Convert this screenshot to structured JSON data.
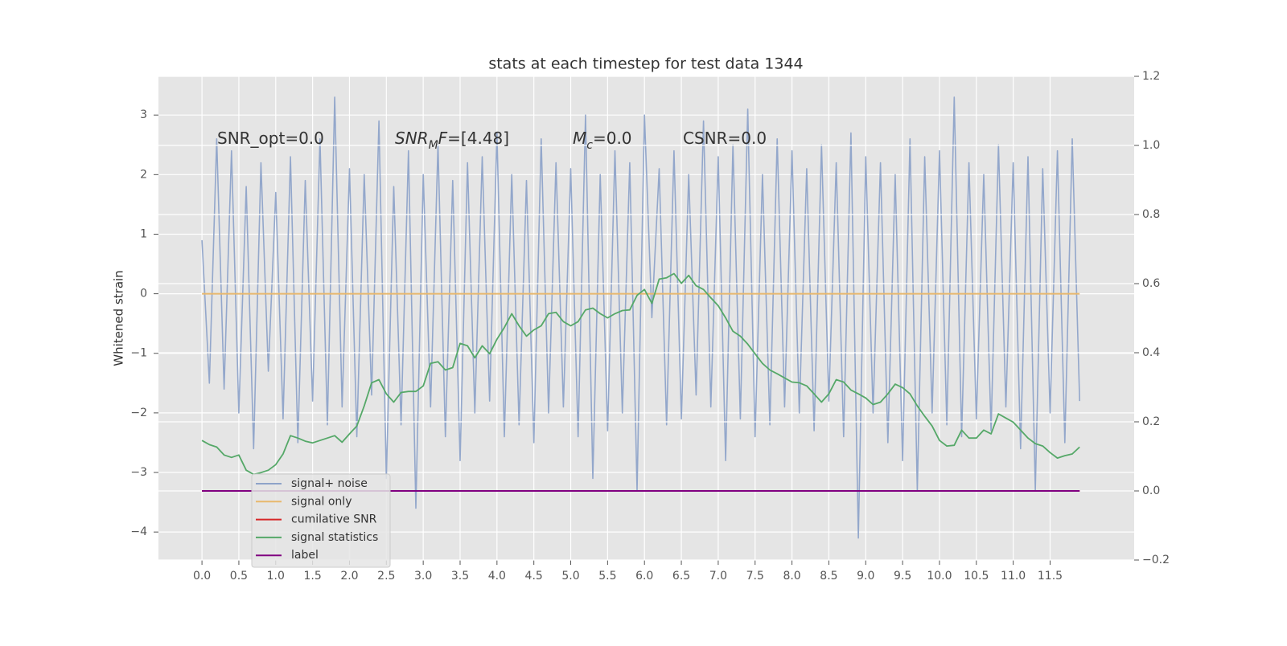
{
  "chart_data": {
    "type": "line",
    "title": "stats at each timestep for test data 1344",
    "y_label": "Whitened strain",
    "annotations": [
      {
        "parts": [
          {
            "text": "SNR_opt=0.0",
            "style": "normal"
          }
        ]
      },
      {
        "parts": [
          {
            "text": "SNR",
            "style": "italic"
          },
          {
            "text": "M",
            "style": "sub"
          },
          {
            "text": "F",
            "style": "italic"
          },
          {
            "text": "=[4.48]",
            "style": "normal"
          }
        ]
      },
      {
        "parts": [
          {
            "text": "M",
            "style": "italic"
          },
          {
            "text": "c",
            "style": "sub"
          },
          {
            "text": "=0.0",
            "style": "normal"
          }
        ]
      },
      {
        "parts": [
          {
            "text": "CSNR=0.0",
            "style": "normal"
          }
        ]
      }
    ],
    "grid": true,
    "legend_loc": "lower left",
    "xlim": [
      -0.59,
      12.64
    ],
    "ylim": [
      -4.47,
      3.65
    ],
    "y2lim": [
      -0.2,
      1.2
    ],
    "xticks": [
      {
        "value": 0,
        "label": "0.0"
      },
      0.5,
      {
        "value": 1,
        "label": "1.0"
      },
      1.5,
      {
        "value": 2,
        "label": "2.0"
      },
      2.5,
      {
        "value": 3,
        "label": "3.0"
      },
      3.5,
      {
        "value": 4,
        "label": "4.0"
      },
      4.5,
      {
        "value": 5,
        "label": "5.0"
      },
      5.5,
      {
        "value": 6,
        "label": "6.0"
      },
      6.5,
      {
        "value": 7,
        "label": "7.0"
      },
      7.5,
      {
        "value": 8,
        "label": "8.0"
      },
      8.5,
      {
        "value": 9,
        "label": "9.0"
      },
      9.5,
      {
        "value": 10,
        "label": "10.0"
      },
      10.5,
      {
        "value": 11,
        "label": "11.0"
      },
      11.5
    ],
    "yticks": [
      {
        "value": -4,
        "label": "−4"
      },
      {
        "value": -3,
        "label": "−3"
      },
      {
        "value": -2,
        "label": "−2"
      },
      {
        "value": -1,
        "label": "−1"
      },
      0,
      1,
      2,
      3
    ],
    "y2ticks": [
      {
        "value": -0.2,
        "label": "−0.2"
      },
      {
        "value": 0,
        "label": "0.0"
      },
      0.2,
      0.4,
      0.6,
      0.8,
      {
        "value": 1,
        "label": "1.0"
      },
      1.2
    ],
    "x": [
      0,
      0.1,
      0.2,
      0.3,
      0.4,
      0.5,
      0.6,
      0.7,
      0.8,
      0.9,
      1,
      1.1,
      1.2,
      1.3,
      1.4,
      1.5,
      1.6,
      1.7,
      1.8,
      1.9,
      2,
      2.1,
      2.2,
      2.3,
      2.4,
      2.5,
      2.6,
      2.7,
      2.8,
      2.9,
      3,
      3.1,
      3.2,
      3.3,
      3.4,
      3.5,
      3.6,
      3.7,
      3.8,
      3.9,
      4,
      4.1,
      4.2,
      4.3,
      4.4,
      4.5,
      4.6,
      4.7,
      4.8,
      4.9,
      5,
      5.1,
      5.2,
      5.3,
      5.4,
      5.5,
      5.6,
      5.7,
      5.8,
      5.9,
      6,
      6.1,
      6.2,
      6.3,
      6.4,
      6.5,
      6.6,
      6.7,
      6.8,
      6.9,
      7,
      7.1,
      7.2,
      7.3,
      7.4,
      7.5,
      7.6,
      7.7,
      7.8,
      7.9,
      8,
      8.1,
      8.2,
      8.3,
      8.4,
      8.5,
      8.6,
      8.7,
      8.8,
      8.9,
      9,
      9.1,
      9.2,
      9.3,
      9.4,
      9.5,
      9.6,
      9.7,
      9.8,
      9.9,
      10,
      10.1,
      10.2,
      10.3,
      10.4,
      10.5,
      10.6,
      10.7,
      10.8,
      10.9,
      11,
      11.1,
      11.2,
      11.3,
      11.4,
      11.5,
      11.6,
      11.7,
      11.8,
      11.9
    ],
    "series": [
      {
        "name": "signal+ noise",
        "color": "#8ea3c9",
        "axis": "y",
        "values": [
          0.9,
          -1.5,
          2.6,
          -1.6,
          2.4,
          -2.0,
          1.8,
          -2.6,
          2.2,
          -1.3,
          1.7,
          -2.1,
          2.3,
          -2.5,
          1.9,
          -1.8,
          2.6,
          -2.2,
          3.3,
          -1.9,
          2.1,
          -2.4,
          2.0,
          -1.7,
          2.9,
          -3.1,
          1.8,
          -2.2,
          2.4,
          -3.6,
          2.0,
          -1.9,
          2.5,
          -2.4,
          1.9,
          -2.8,
          2.2,
          -2.0,
          2.3,
          -1.8,
          2.7,
          -2.4,
          2.0,
          -2.2,
          1.9,
          -2.5,
          2.6,
          -2.0,
          2.2,
          -1.9,
          2.1,
          -2.4,
          3.0,
          -3.1,
          2.0,
          -2.3,
          2.4,
          -2.0,
          2.2,
          -3.3,
          3.0,
          -0.4,
          2.1,
          -2.2,
          2.4,
          -2.1,
          2.0,
          -1.7,
          2.9,
          -1.9,
          2.3,
          -2.8,
          2.5,
          -2.1,
          3.1,
          -2.4,
          2.0,
          -2.2,
          2.6,
          -1.9,
          2.4,
          -2.0,
          2.1,
          -2.3,
          2.5,
          -1.8,
          2.2,
          -2.4,
          2.7,
          -4.1,
          2.3,
          -2.0,
          2.2,
          -2.5,
          2.0,
          -2.8,
          2.6,
          -3.3,
          2.3,
          -2.0,
          2.4,
          -2.2,
          3.3,
          -2.4,
          2.2,
          -2.1,
          2.0,
          -2.3,
          2.5,
          -1.9,
          2.2,
          -2.6,
          2.3,
          -3.3,
          2.1,
          -2.0,
          2.4,
          -2.5,
          2.6,
          -1.8
        ]
      },
      {
        "name": "signal only",
        "color": "#e8b86d",
        "axis": "y",
        "values": [
          0,
          0,
          0,
          0,
          0,
          0,
          0,
          0,
          0,
          0,
          0,
          0,
          0,
          0,
          0,
          0,
          0,
          0,
          0,
          0,
          0,
          0,
          0,
          0,
          0,
          0,
          0,
          0,
          0,
          0,
          0,
          0,
          0,
          0,
          0,
          0,
          0,
          0,
          0,
          0,
          0,
          0,
          0,
          0,
          0,
          0,
          0,
          0,
          0,
          0,
          0,
          0,
          0,
          0,
          0,
          0,
          0,
          0,
          0,
          0,
          0,
          0,
          0,
          0,
          0,
          0,
          0,
          0,
          0,
          0,
          0,
          0,
          0,
          0,
          0,
          0,
          0,
          0,
          0,
          0,
          0,
          0,
          0,
          0,
          0,
          0,
          0,
          0,
          0,
          0,
          0,
          0,
          0,
          0,
          0,
          0,
          0,
          0,
          0,
          0,
          0,
          0,
          0,
          0,
          0,
          0,
          0,
          0,
          0,
          0,
          0,
          0,
          0,
          0,
          0,
          0,
          0,
          0,
          0,
          0
        ]
      },
      {
        "name": "cumilative SNR",
        "color": "#d62728",
        "axis": "y2",
        "values": [
          0,
          0,
          0,
          0,
          0,
          0,
          0,
          0,
          0,
          0,
          0,
          0,
          0,
          0,
          0,
          0,
          0,
          0,
          0,
          0,
          0,
          0,
          0,
          0,
          0,
          0,
          0,
          0,
          0,
          0,
          0,
          0,
          0,
          0,
          0,
          0,
          0,
          0,
          0,
          0,
          0,
          0,
          0,
          0,
          0,
          0,
          0,
          0,
          0,
          0,
          0,
          0,
          0,
          0,
          0,
          0,
          0,
          0,
          0,
          0,
          0,
          0,
          0,
          0,
          0,
          0,
          0,
          0,
          0,
          0,
          0,
          0,
          0,
          0,
          0,
          0,
          0,
          0,
          0,
          0,
          0,
          0,
          0,
          0,
          0,
          0,
          0,
          0,
          0,
          0,
          0,
          0,
          0,
          0,
          0,
          0,
          0,
          0,
          0,
          0,
          0,
          0,
          0,
          0,
          0,
          0,
          0,
          0,
          0,
          0,
          0,
          0,
          0,
          0,
          0,
          0,
          0,
          0,
          0,
          0
        ]
      },
      {
        "name": "signal statistics",
        "color": "#55a868",
        "axis": "y2",
        "values": [
          0.146,
          0.134,
          0.127,
          0.104,
          0.097,
          0.104,
          0.06,
          0.048,
          0.053,
          0.06,
          0.076,
          0.107,
          0.16,
          0.153,
          0.144,
          0.139,
          0.146,
          0.153,
          0.16,
          0.141,
          0.165,
          0.188,
          0.246,
          0.313,
          0.322,
          0.281,
          0.257,
          0.285,
          0.288,
          0.288,
          0.304,
          0.369,
          0.374,
          0.35,
          0.357,
          0.427,
          0.42,
          0.385,
          0.42,
          0.397,
          0.439,
          0.473,
          0.513,
          0.478,
          0.448,
          0.466,
          0.478,
          0.513,
          0.517,
          0.49,
          0.478,
          0.49,
          0.524,
          0.529,
          0.513,
          0.501,
          0.513,
          0.522,
          0.524,
          0.566,
          0.583,
          0.543,
          0.613,
          0.617,
          0.629,
          0.601,
          0.624,
          0.594,
          0.583,
          0.559,
          0.536,
          0.501,
          0.462,
          0.448,
          0.425,
          0.397,
          0.369,
          0.35,
          0.339,
          0.327,
          0.315,
          0.313,
          0.304,
          0.281,
          0.257,
          0.281,
          0.322,
          0.315,
          0.292,
          0.281,
          0.269,
          0.25,
          0.257,
          0.281,
          0.309,
          0.299,
          0.281,
          0.246,
          0.216,
          0.188,
          0.146,
          0.13,
          0.132,
          0.176,
          0.153,
          0.153,
          0.176,
          0.165,
          0.223,
          0.211,
          0.199,
          0.176,
          0.153,
          0.137,
          0.13,
          0.111,
          0.095,
          0.102,
          0.107,
          0.127
        ]
      },
      {
        "name": "label",
        "color": "#800080",
        "axis": "y2",
        "values": [
          0,
          0,
          0,
          0,
          0,
          0,
          0,
          0,
          0,
          0,
          0,
          0,
          0,
          0,
          0,
          0,
          0,
          0,
          0,
          0,
          0,
          0,
          0,
          0,
          0,
          0,
          0,
          0,
          0,
          0,
          0,
          0,
          0,
          0,
          0,
          0,
          0,
          0,
          0,
          0,
          0,
          0,
          0,
          0,
          0,
          0,
          0,
          0,
          0,
          0,
          0,
          0,
          0,
          0,
          0,
          0,
          0,
          0,
          0,
          0,
          0,
          0,
          0,
          0,
          0,
          0,
          0,
          0,
          0,
          0,
          0,
          0,
          0,
          0,
          0,
          0,
          0,
          0,
          0,
          0,
          0,
          0,
          0,
          0,
          0,
          0,
          0,
          0,
          0,
          0,
          0,
          0,
          0,
          0,
          0,
          0,
          0,
          0,
          0,
          0,
          0,
          0,
          0,
          0,
          0,
          0,
          0,
          0,
          0,
          0,
          0,
          0,
          0,
          0,
          0,
          0,
          0,
          0,
          0,
          0
        ]
      }
    ]
  }
}
